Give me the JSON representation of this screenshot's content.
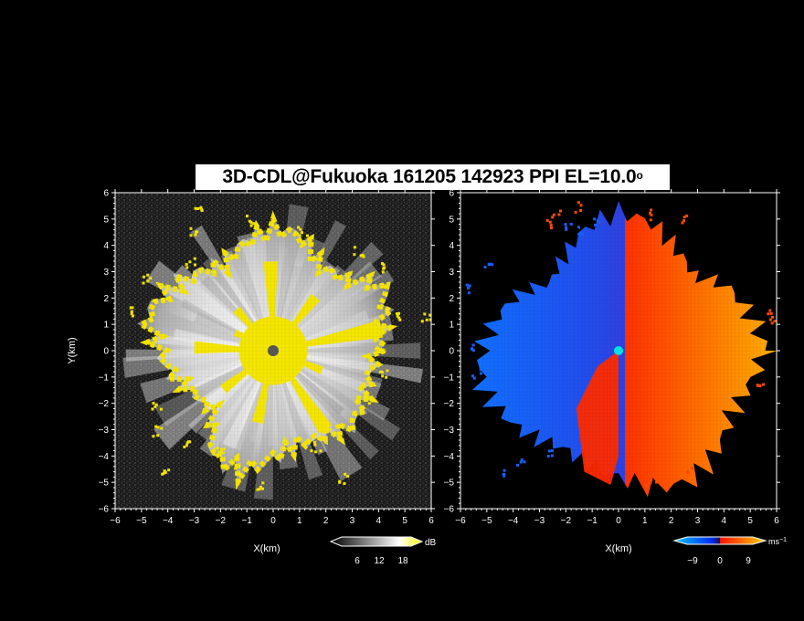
{
  "chart_data": {
    "type": "heatmap",
    "title_main": "3D-CDL@Fukuoka 161205 142923 PPI EL=10.0",
    "title_degree": "o",
    "panels": [
      {
        "id": "reflectivity",
        "xlabel": "X(km)",
        "ylabel": "Y(km)",
        "xlim": [
          -6,
          6
        ],
        "ylim": [
          -6,
          6
        ],
        "xticks": [
          -6,
          -5,
          -4,
          -3,
          -2,
          -1,
          0,
          1,
          2,
          3,
          4,
          5,
          6
        ],
        "yticks": [
          -6,
          -5,
          -4,
          -3,
          -2,
          -1,
          0,
          1,
          2,
          3,
          4,
          5,
          6
        ],
        "colorbar": {
          "unit": "dB",
          "ticks": [
            "6",
            "12",
            "18"
          ],
          "colors": [
            "#000000",
            "#ffffff",
            "#ffff00"
          ]
        },
        "echo_radius_km": [
          4.2,
          4.6,
          5.2,
          4.1,
          3.9,
          4.7,
          5.0,
          4.5,
          4.0,
          4.4,
          4.9,
          5.3,
          4.6,
          4.1,
          3.6,
          3.4,
          4.8,
          5.1,
          4.3,
          3.9,
          4.0,
          4.4,
          4.2,
          4.0
        ]
      },
      {
        "id": "velocity",
        "xlabel": "X(km)",
        "xlim": [
          -6,
          6
        ],
        "ylim": [
          -6,
          6
        ],
        "xticks": [
          -6,
          -5,
          -4,
          -3,
          -2,
          -1,
          0,
          1,
          2,
          3,
          4,
          5,
          6
        ],
        "yticks": [
          -6,
          -5,
          -4,
          -3,
          -2,
          -1,
          0,
          1,
          2,
          3,
          4,
          5,
          6
        ],
        "colorbar": {
          "unit": "ms",
          "unit_exp": "−1",
          "ticks": [
            "−9",
            "0",
            "9"
          ],
          "colors": [
            "#00c8ff",
            "#0040ff",
            "#ff2000",
            "#ffd000"
          ]
        },
        "echo_radius_km": [
          5.8,
          5.4,
          5.0,
          4.2,
          4.6,
          5.2,
          5.5,
          5.0,
          4.3,
          3.8,
          4.5,
          5.0,
          5.4,
          5.6,
          5.2,
          4.8,
          4.4,
          4.6,
          5.0,
          5.6,
          5.9,
          5.5,
          5.1,
          5.3
        ]
      }
    ]
  }
}
